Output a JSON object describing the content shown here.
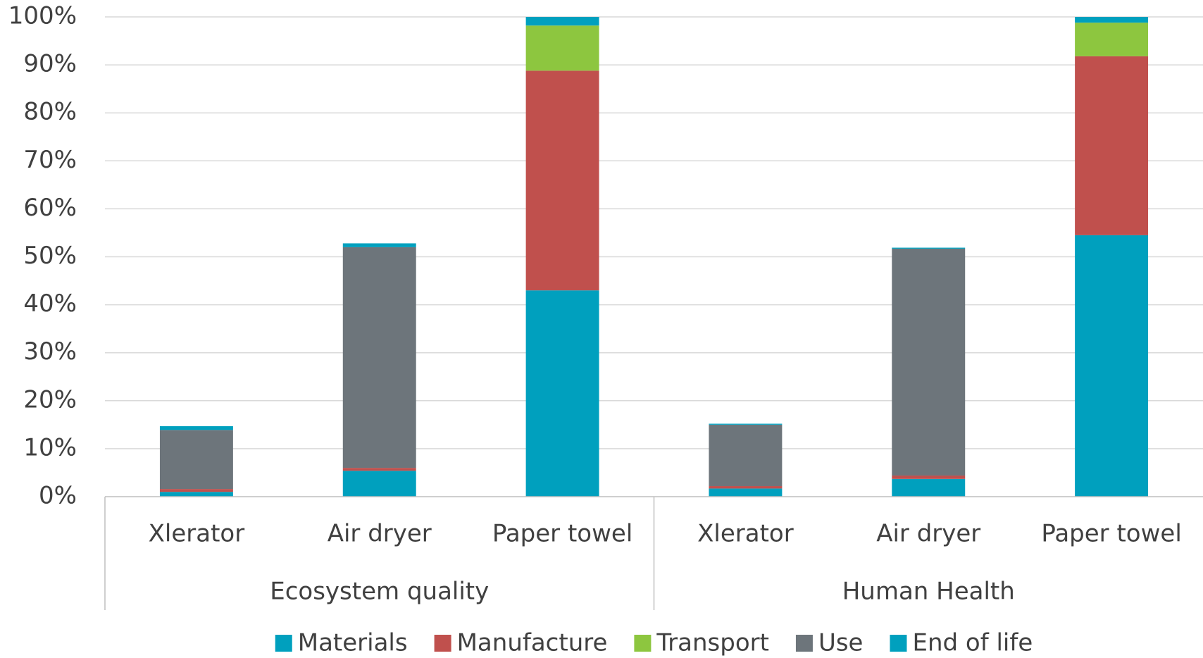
{
  "chart_data": {
    "type": "stacked_bar",
    "categories": [
      "Xlerator",
      "Air dryer",
      "Paper towel",
      "Xlerator",
      "Air dryer",
      "Paper towel"
    ],
    "groups": [
      "Ecosystem quality",
      "Human Health"
    ],
    "series": [
      {
        "name": "Materials",
        "color": "#00a0be",
        "values": [
          1.0,
          5.4,
          43.0,
          1.7,
          3.7,
          54.5
        ]
      },
      {
        "name": "Manufacture",
        "color": "#c0504d",
        "values": [
          0.6,
          0.6,
          45.8,
          0.5,
          0.7,
          37.3
        ]
      },
      {
        "name": "Transport",
        "color": "#8dc63f",
        "values": [
          0.0,
          0.0,
          9.4,
          0.0,
          0.0,
          7.0
        ]
      },
      {
        "name": "Use",
        "color": "#6d757b",
        "values": [
          12.3,
          46.0,
          0.0,
          12.8,
          47.3,
          0.0
        ]
      },
      {
        "name": "End of life",
        "color": "#00a0be",
        "values": [
          0.8,
          0.8,
          1.8,
          0.2,
          0.2,
          1.2
        ]
      }
    ],
    "ylim": [
      0,
      100
    ],
    "yticks": [
      {
        "value": 0,
        "label": "0%"
      },
      {
        "value": 10,
        "label": "10%"
      },
      {
        "value": 20,
        "label": "20%"
      },
      {
        "value": 30,
        "label": "30%"
      },
      {
        "value": 40,
        "label": "40%"
      },
      {
        "value": 50,
        "label": "50%"
      },
      {
        "value": 60,
        "label": "60%"
      },
      {
        "value": 70,
        "label": "70%"
      },
      {
        "value": 80,
        "label": "80%"
      },
      {
        "value": 90,
        "label": "90%"
      },
      {
        "value": 100,
        "label": "100%"
      }
    ],
    "grid": true,
    "legend": "bottom"
  }
}
